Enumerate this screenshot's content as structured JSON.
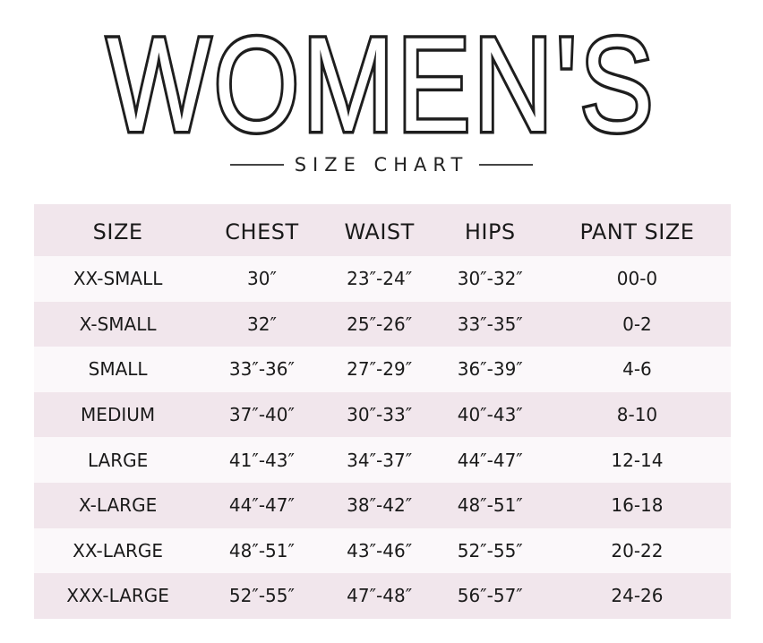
{
  "title": "WOMEN'S",
  "subtitle": "SIZE CHART",
  "colors": {
    "row_tint": "#f1e6ec",
    "row_light": "#fbf8fa",
    "text": "#1a1a1a"
  },
  "columns": [
    "SIZE",
    "CHEST",
    "WAIST",
    "HIPS",
    "PANT SIZE"
  ],
  "rows": [
    [
      "XX-SMALL",
      "30″",
      "23″-24″",
      "30″-32″",
      "00-0"
    ],
    [
      "X-SMALL",
      "32″",
      "25″-26″",
      "33″-35″",
      "0-2"
    ],
    [
      "SMALL",
      "33″-36″",
      "27″-29″",
      "36″-39″",
      "4-6"
    ],
    [
      "MEDIUM",
      "37″-40″",
      "30″-33″",
      "40″-43″",
      "8-10"
    ],
    [
      "LARGE",
      "41″-43″",
      "34″-37″",
      "44″-47″",
      "12-14"
    ],
    [
      "X-LARGE",
      "44″-47″",
      "38″-42″",
      "48″-51″",
      "16-18"
    ],
    [
      "XX-LARGE",
      "48″-51″",
      "43″-46″",
      "52″-55″",
      "20-22"
    ],
    [
      "XXX-LARGE",
      "52″-55″",
      "47″-48″",
      "56″-57″",
      "24-26"
    ]
  ]
}
